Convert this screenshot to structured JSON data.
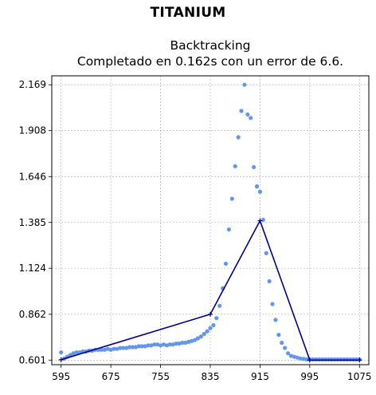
{
  "figure": {
    "suptitle": "TITANIUM",
    "title_line1": "Backtracking",
    "title_line2": "Completado en 0.162s con un error de 6.6."
  },
  "colors": {
    "scatter": "#6495ed",
    "line": "#00008b",
    "grid": "#b0b0b0"
  },
  "chart_data": {
    "type": "scatter",
    "title": "Backtracking\nCompletado en 0.162s con un error de 6.6.",
    "xlim": [
      580,
      1090
    ],
    "ylim": [
      0.575,
      2.22
    ],
    "grid": true,
    "x_ticks": [
      "595",
      "675",
      "755",
      "835",
      "915",
      "995",
      "1075"
    ],
    "x_tick_values": [
      595,
      675,
      755,
      835,
      915,
      995,
      1075
    ],
    "y_ticks": [
      "0.601",
      "0.862",
      "1.124",
      "1.385",
      "1.646",
      "1.908",
      "2.169"
    ],
    "y_tick_values": [
      0.601,
      0.862,
      1.124,
      1.385,
      1.646,
      1.908,
      2.169
    ],
    "series": [
      {
        "type": "scatter",
        "x": [
          595,
          600,
          605,
          610,
          615,
          620,
          625,
          630,
          635,
          640,
          645,
          650,
          655,
          660,
          665,
          670,
          675,
          680,
          685,
          690,
          695,
          700,
          705,
          710,
          715,
          720,
          725,
          730,
          735,
          740,
          745,
          750,
          755,
          760,
          765,
          770,
          775,
          780,
          785,
          790,
          795,
          800,
          805,
          810,
          815,
          820,
          825,
          830,
          835,
          840,
          845,
          850,
          855,
          860,
          865,
          870,
          875,
          880,
          885,
          890,
          895,
          900,
          905,
          910,
          915,
          920,
          925,
          930,
          935,
          940,
          945,
          950,
          955,
          960,
          965,
          970,
          975,
          980,
          985,
          990,
          995,
          1000,
          1005,
          1010,
          1015,
          1020,
          1025,
          1030,
          1035,
          1040,
          1045,
          1050,
          1055,
          1060,
          1065,
          1070,
          1075
        ],
        "y": [
          0.645,
          0.61,
          0.62,
          0.63,
          0.64,
          0.645,
          0.645,
          0.65,
          0.65,
          0.655,
          0.655,
          0.66,
          0.66,
          0.66,
          0.66,
          0.665,
          0.66,
          0.665,
          0.665,
          0.67,
          0.67,
          0.67,
          0.675,
          0.675,
          0.675,
          0.68,
          0.68,
          0.68,
          0.685,
          0.685,
          0.69,
          0.69,
          0.685,
          0.69,
          0.685,
          0.69,
          0.69,
          0.695,
          0.695,
          0.7,
          0.7,
          0.705,
          0.71,
          0.715,
          0.725,
          0.735,
          0.75,
          0.765,
          0.783,
          0.8,
          0.84,
          0.91,
          1.01,
          1.15,
          1.345,
          1.52,
          1.705,
          1.87,
          2.02,
          2.169,
          2.0,
          1.98,
          1.7,
          1.59,
          1.56,
          1.4,
          1.21,
          1.05,
          0.92,
          0.83,
          0.745,
          0.7,
          0.67,
          0.64,
          0.625,
          0.62,
          0.615,
          0.61,
          0.608,
          0.605,
          0.605,
          0.605,
          0.605,
          0.605,
          0.605,
          0.605,
          0.605,
          0.605,
          0.605,
          0.605,
          0.605,
          0.605,
          0.605,
          0.605,
          0.605,
          0.605,
          0.605
        ]
      },
      {
        "type": "line",
        "x": [
          595,
          835,
          915,
          995,
          1075
        ],
        "y": [
          0.603,
          0.862,
          1.395,
          0.601,
          0.601
        ]
      }
    ]
  }
}
